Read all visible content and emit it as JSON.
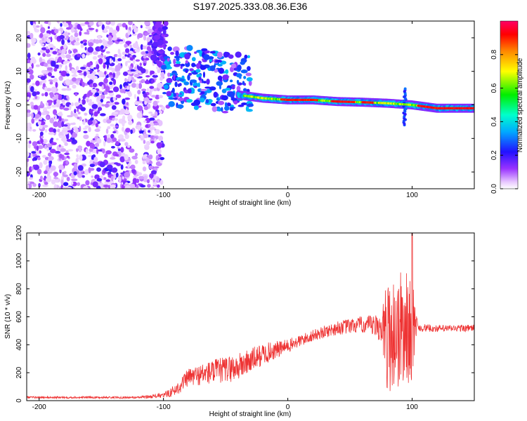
{
  "title": "S197.2025.333.08.36.E36",
  "chart_data": [
    {
      "type": "heatmap",
      "name": "spectrogram",
      "title": "S197.2025.333.08.36.E36",
      "xlabel": "Height of straight line (km)",
      "ylabel": "Frequency (Hz)",
      "xlim": [
        -210,
        150
      ],
      "ylim": [
        -25,
        25
      ],
      "xticks": [
        -200,
        -100,
        0,
        100
      ],
      "yticks": [
        -20,
        -10,
        0,
        10,
        20
      ],
      "colorbar": {
        "label": "Normalized spectral amplitude",
        "range": [
          0,
          1
        ],
        "ticks": [
          "0.0",
          "0.2",
          "0.4",
          "0.6",
          "0.8"
        ],
        "tick_values": [
          0.0,
          0.2,
          0.4,
          0.6,
          0.8
        ]
      },
      "ridge": {
        "description_points_x": [
          -70,
          -40,
          -20,
          0,
          20,
          40,
          60,
          80,
          100,
          120,
          150
        ],
        "description_points_y": [
          5,
          3,
          2,
          1.5,
          1.5,
          1,
          0.8,
          0.5,
          0,
          -1,
          -1
        ]
      }
    },
    {
      "type": "line",
      "name": "snr",
      "xlabel": "Height of straight line (km)",
      "ylabel": "SNR (10 * v/v)",
      "xlim": [
        -210,
        150
      ],
      "ylim": [
        0,
        1200
      ],
      "xticks": [
        -200,
        -100,
        0,
        100
      ],
      "yticks": [
        0,
        200,
        400,
        600,
        800,
        1000,
        1200
      ],
      "color": "#ee3333",
      "envelope": {
        "x": [
          -210,
          -120,
          -100,
          -90,
          -80,
          -60,
          -40,
          -20,
          0,
          20,
          40,
          60,
          75,
          80,
          90,
          100,
          105,
          120,
          150
        ],
        "base": [
          20,
          20,
          30,
          60,
          140,
          170,
          200,
          300,
          370,
          450,
          500,
          520,
          480,
          460,
          500,
          520,
          510,
          505,
          510
        ],
        "amp": [
          15,
          15,
          35,
          90,
          130,
          180,
          200,
          160,
          100,
          80,
          100,
          120,
          200,
          400,
          450,
          380,
          60,
          50,
          50
        ]
      }
    }
  ]
}
